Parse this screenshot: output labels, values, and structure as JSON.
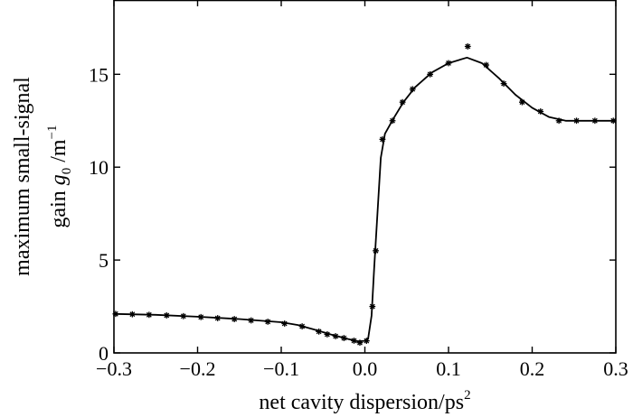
{
  "chart_data": {
    "type": "line",
    "xlabel": "net cavity dispersion/ps",
    "xlabel_sup": "2",
    "ylabel_line1": "maximum small-signal",
    "ylabel_line2_prefix": "gain ",
    "ylabel_line2_var": "g",
    "ylabel_line2_sub": "0",
    "ylabel_line2_unit": " /m",
    "ylabel_line2_sup": "−1",
    "xlim": [
      -0.3,
      0.3
    ],
    "ylim": [
      0,
      19
    ],
    "x_ticks": [
      -0.3,
      -0.2,
      -0.1,
      0.0,
      0.1,
      0.2,
      0.3
    ],
    "x_tick_labels": [
      "−0.3",
      "−0.2",
      "−0.1",
      "0.0",
      "0.1",
      "0.2",
      "0.3"
    ],
    "y_ticks": [
      0,
      5,
      10,
      15
    ],
    "y_tick_labels": [
      "0",
      "5",
      "10",
      "15"
    ],
    "grid": false,
    "series": [
      {
        "style": "markers",
        "marker": "asterisk",
        "color": "#000000",
        "points": [
          [
            -0.298,
            2.1
          ],
          [
            -0.278,
            2.08
          ],
          [
            -0.258,
            2.05
          ],
          [
            -0.237,
            2.02
          ],
          [
            -0.217,
            1.98
          ],
          [
            -0.196,
            1.93
          ],
          [
            -0.176,
            1.87
          ],
          [
            -0.156,
            1.82
          ],
          [
            -0.136,
            1.75
          ],
          [
            -0.116,
            1.68
          ],
          [
            -0.096,
            1.58
          ],
          [
            -0.075,
            1.43
          ],
          [
            -0.055,
            1.15
          ],
          [
            -0.045,
            1.0
          ],
          [
            -0.035,
            0.9
          ],
          [
            -0.025,
            0.8
          ],
          [
            -0.013,
            0.66
          ],
          [
            -0.006,
            0.55
          ],
          [
            0.002,
            0.65
          ],
          [
            0.009,
            2.5
          ],
          [
            0.013,
            5.5
          ],
          [
            0.021,
            11.5
          ],
          [
            0.033,
            12.5
          ],
          [
            0.045,
            13.5
          ],
          [
            0.057,
            14.2
          ],
          [
            0.078,
            15.0
          ],
          [
            0.1,
            15.6
          ],
          [
            0.123,
            16.5
          ],
          [
            0.145,
            15.5
          ],
          [
            0.166,
            14.5
          ],
          [
            0.188,
            13.5
          ],
          [
            0.21,
            13.0
          ],
          [
            0.232,
            12.5
          ],
          [
            0.253,
            12.5
          ],
          [
            0.275,
            12.5
          ],
          [
            0.297,
            12.5
          ]
        ]
      },
      {
        "style": "line",
        "color": "#000000",
        "points": [
          [
            -0.3,
            2.1
          ],
          [
            -0.25,
            2.05
          ],
          [
            -0.2,
            1.95
          ],
          [
            -0.15,
            1.82
          ],
          [
            -0.1,
            1.65
          ],
          [
            -0.08,
            1.5
          ],
          [
            -0.06,
            1.25
          ],
          [
            -0.04,
            0.98
          ],
          [
            -0.02,
            0.75
          ],
          [
            -0.008,
            0.62
          ],
          [
            0.0,
            0.65
          ],
          [
            0.004,
            0.8
          ],
          [
            0.008,
            2.0
          ],
          [
            0.011,
            4.5
          ],
          [
            0.015,
            7.5
          ],
          [
            0.019,
            10.5
          ],
          [
            0.024,
            11.8
          ],
          [
            0.034,
            12.6
          ],
          [
            0.046,
            13.5
          ],
          [
            0.06,
            14.3
          ],
          [
            0.08,
            15.1
          ],
          [
            0.1,
            15.6
          ],
          [
            0.122,
            15.9
          ],
          [
            0.14,
            15.6
          ],
          [
            0.16,
            14.8
          ],
          [
            0.18,
            13.9
          ],
          [
            0.2,
            13.2
          ],
          [
            0.22,
            12.7
          ],
          [
            0.24,
            12.5
          ],
          [
            0.27,
            12.5
          ],
          [
            0.3,
            12.5
          ]
        ]
      }
    ]
  }
}
